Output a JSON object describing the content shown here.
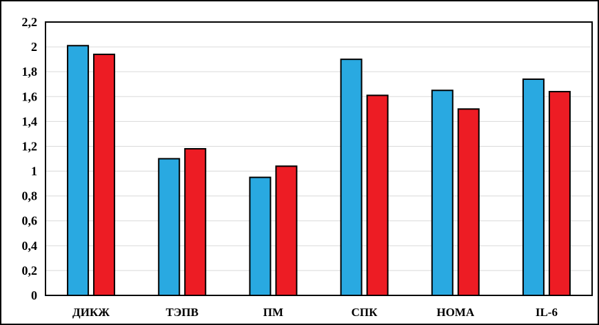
{
  "chart_data": {
    "type": "bar",
    "title": "",
    "xlabel": "",
    "ylabel": "",
    "categories": [
      "ДИКЖ",
      "ТЭПВ",
      "ПМ",
      "СПК",
      "HOMA",
      "IL-6"
    ],
    "series": [
      {
        "color": "#29a9e1",
        "values": [
          2.01,
          1.1,
          0.95,
          1.9,
          1.65,
          1.74
        ]
      },
      {
        "color": "#ed1c24",
        "values": [
          1.94,
          1.18,
          1.04,
          1.61,
          1.5,
          1.64
        ]
      }
    ],
    "ylim": [
      0,
      2.2
    ],
    "yticks": [
      0,
      0.2,
      0.4,
      0.6,
      0.8,
      1,
      1.2,
      1.4,
      1.6,
      1.8,
      2,
      2.2
    ],
    "ytick_labels": [
      "0",
      "0,2",
      "0,4",
      "0,6",
      "0,8",
      "1",
      "1,2",
      "1,4",
      "1,6",
      "1,8",
      "2",
      "2,2"
    ],
    "grid": true,
    "legend": "none"
  }
}
